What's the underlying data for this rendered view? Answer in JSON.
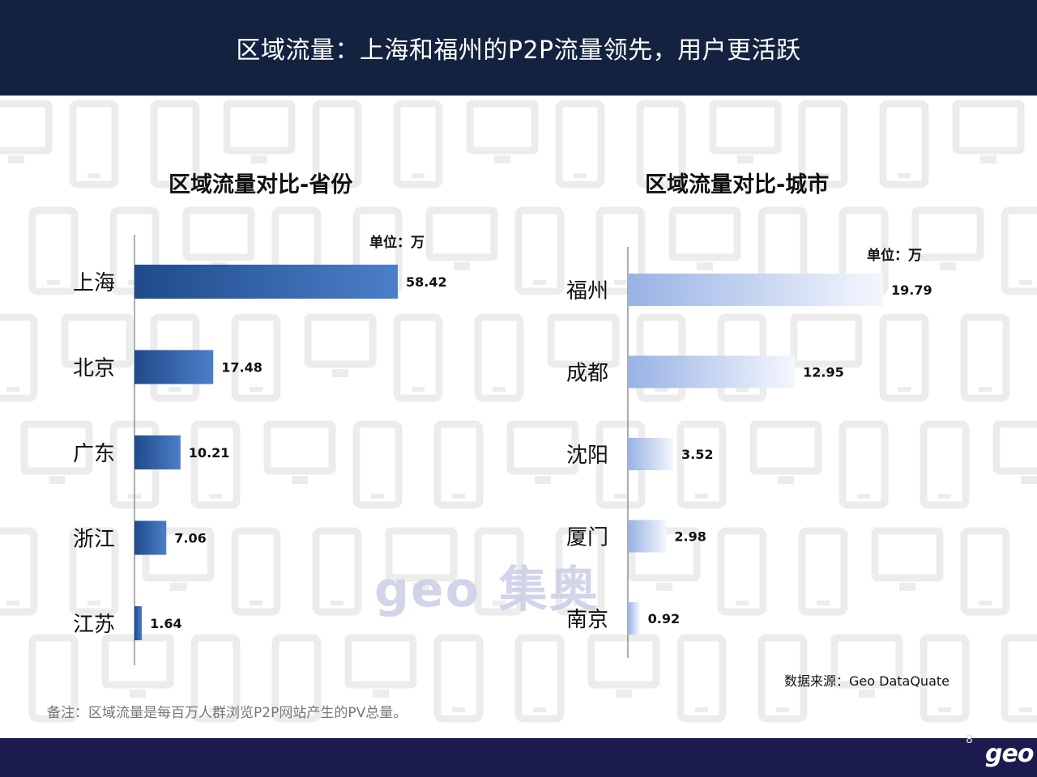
{
  "header": {
    "title": "区域流量：上海和福州的P2P流量领先，用户更活跃"
  },
  "chart_data": [
    {
      "type": "bar",
      "orientation": "horizontal",
      "title": "区域流量对比-省份",
      "unit": "单位：万",
      "categories": [
        "上海",
        "北京",
        "广东",
        "浙江",
        "江苏"
      ],
      "values": [
        58.42,
        17.48,
        10.21,
        7.06,
        1.64
      ],
      "labels": [
        "58.42",
        "17.48",
        "10.21",
        "7.06",
        "1.64"
      ],
      "color": "#2f5ea8"
    },
    {
      "type": "bar",
      "orientation": "horizontal",
      "title": "区域流量对比-城市",
      "unit": "单位：万",
      "categories": [
        "福州",
        "成都",
        "沈阳",
        "厦门",
        "南京"
      ],
      "values": [
        19.79,
        12.95,
        3.52,
        2.98,
        0.92
      ],
      "labels": [
        "19.79",
        "12.95",
        "3.52",
        "2.98",
        "0.92"
      ],
      "color": "#9fb6e6"
    }
  ],
  "watermark": "geo 集奥",
  "source": "数据来源：Geo  DataQuate",
  "note": "备注：区域流量是每百万人群浏览P2P网站产生的PV总量。",
  "page_number": "8",
  "footer_logo": "geo"
}
